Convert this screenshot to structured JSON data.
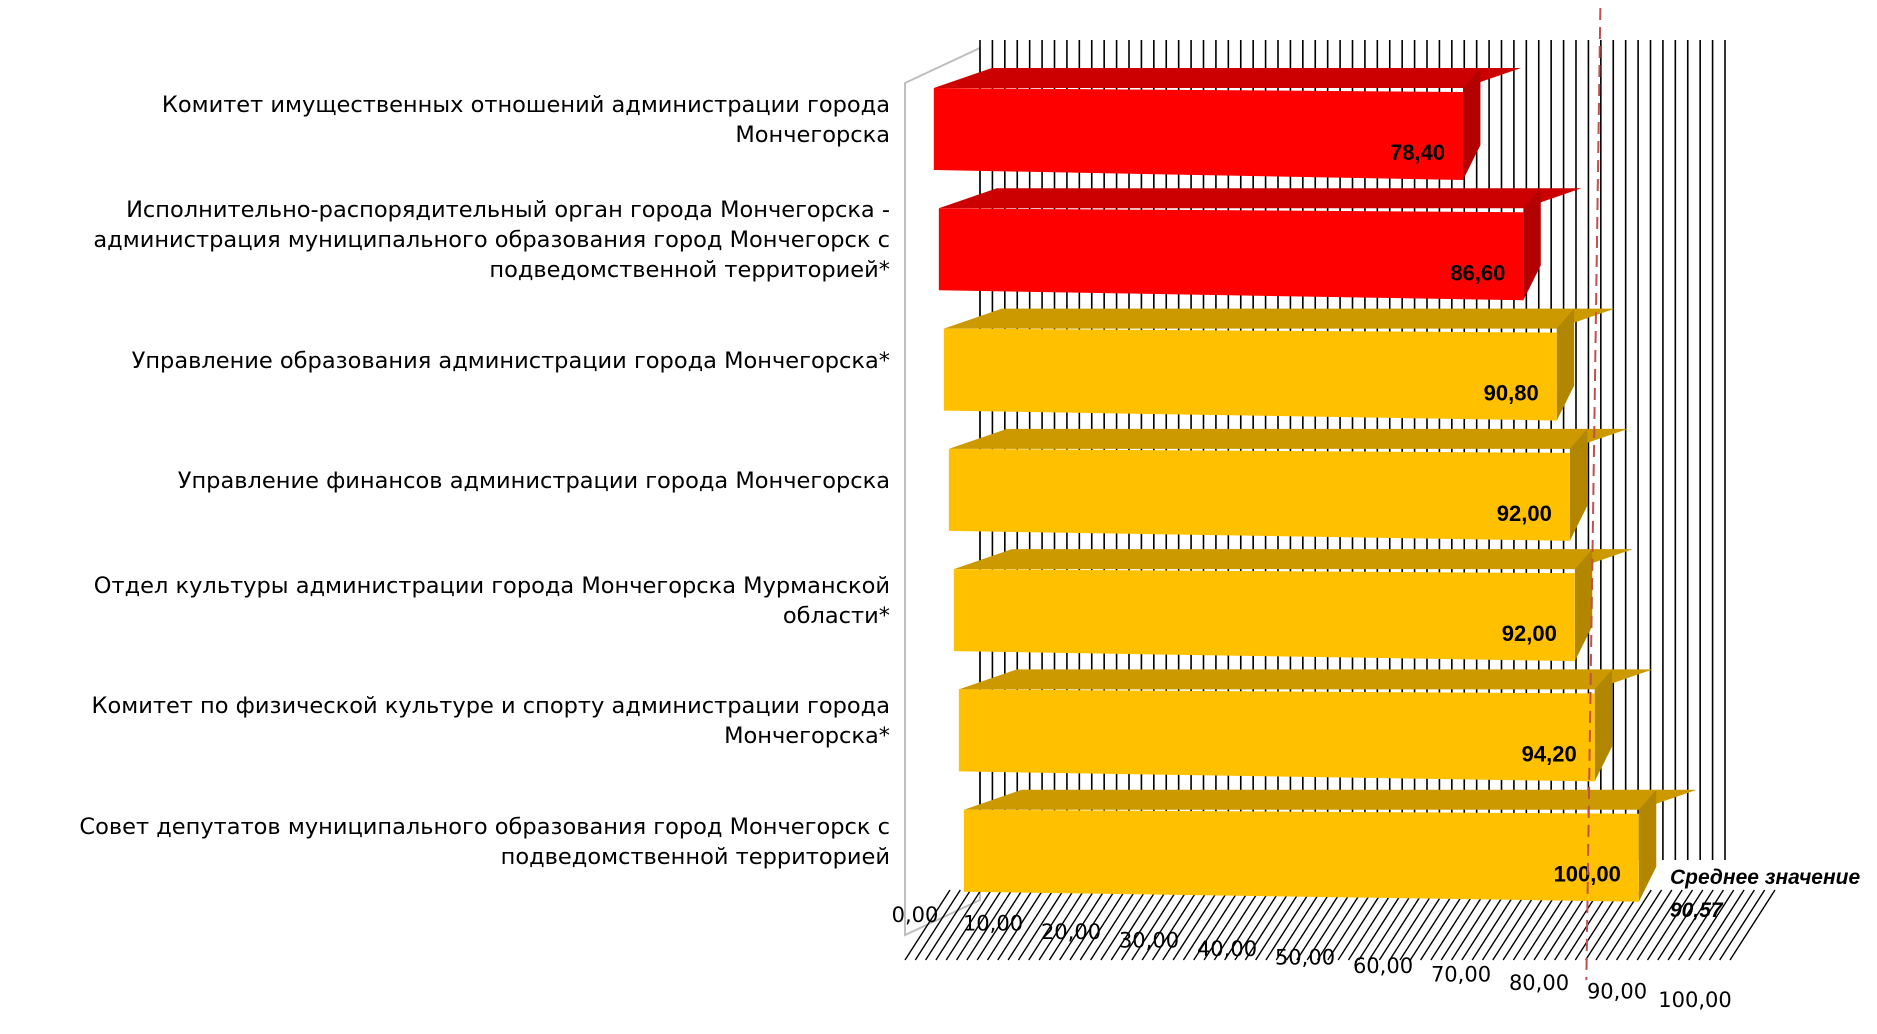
{
  "chart_data": {
    "type": "bar",
    "orientation": "horizontal",
    "style": "3d",
    "categories": [
      "Комитет имущественных отношений администрации города Мончегорска",
      "Исполнительно-распорядительный орган города Мончегорска - администрация муниципального образования город Мончегорск с подведомственной территорией*",
      "Управление образования администрации города Мончегорска*",
      "Управление финансов администрации города Мончегорска",
      "Отдел культуры администрации города Мончегорска Мурманской области*",
      "Комитет по физической культуре и спорту администрации города Мончегорска*",
      "Совет депутатов муниципального образования город Мончегорск с подведомственной территорией"
    ],
    "values": [
      78.4,
      86.6,
      90.8,
      92.0,
      92.0,
      94.2,
      100.0
    ],
    "value_labels": [
      "78,40",
      "86,60",
      "90,80",
      "92,00",
      "92,00",
      "94,20",
      "100,00"
    ],
    "bar_colors": [
      "#ff0000",
      "#ff0000",
      "#ffc000",
      "#ffc000",
      "#ffc000",
      "#ffc000",
      "#ffc000"
    ],
    "x_tick_labels": [
      "0,00",
      "10,00",
      "20,00",
      "30,00",
      "40,00",
      "50,00",
      "60,00",
      "70,00",
      "80,00",
      "90,00",
      "100,00"
    ],
    "xlim": [
      0,
      100
    ],
    "grid": true,
    "average": {
      "value": 90.57,
      "label": "Среднее значение",
      "value_label": "90,57",
      "line_color": "#c0504d"
    }
  }
}
